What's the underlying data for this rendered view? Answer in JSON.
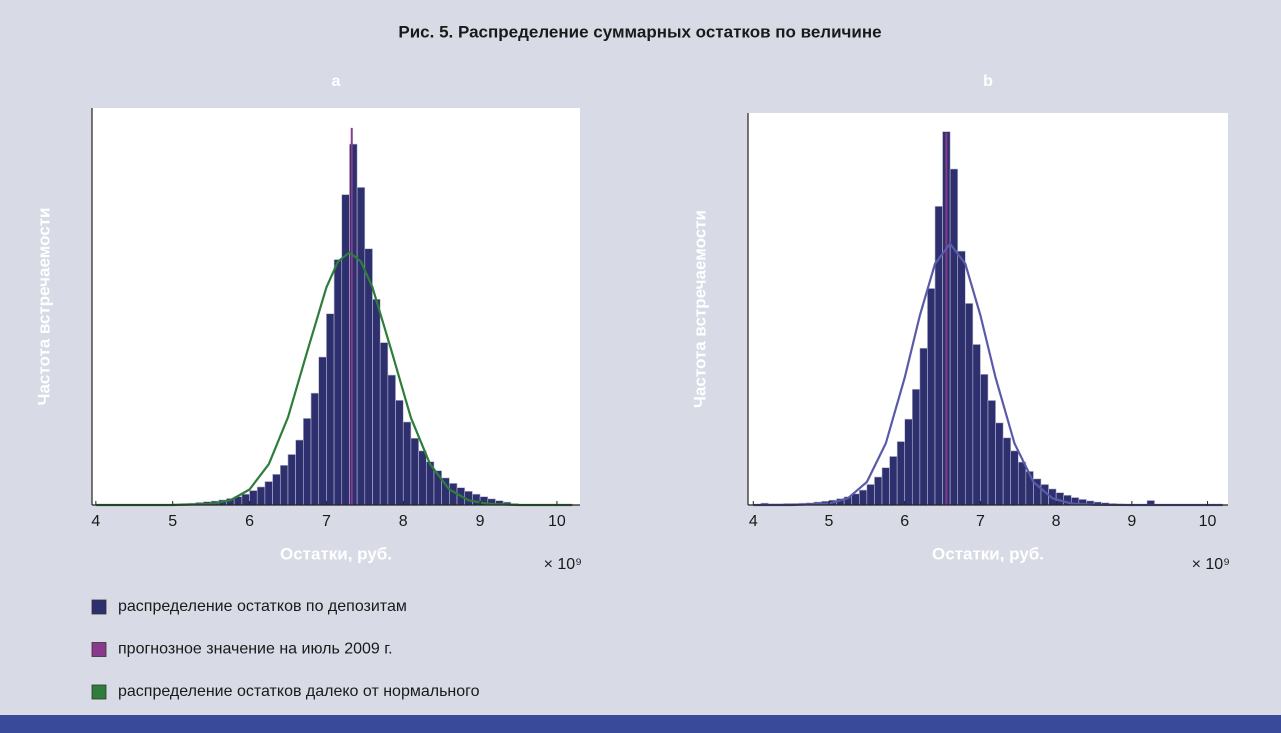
{
  "title": "Рис. 5. Распределение суммарных остатков по величине",
  "legend": [
    {
      "label": "распределение остатков по депозитам",
      "color": "#2e2f6e"
    },
    {
      "label": "прогнозное значение на июль 2009 г.",
      "color": "#8a3a8a"
    },
    {
      "label": "распределение остатков далеко от нормального",
      "color": "#2e7d3a"
    }
  ],
  "chart_data": [
    {
      "type": "histogram",
      "title": "a",
      "xlabel": "Остатки, руб.",
      "ylabel": "Частота встречаемости",
      "x_multiplier": "× 10⁹",
      "xlim": [
        3.95,
        10.3
      ],
      "xticks": [
        4,
        5,
        6,
        7,
        8,
        9,
        10
      ],
      "ylim": [
        0,
        110
      ],
      "bins": [
        5.0,
        5.1,
        5.2,
        5.3,
        5.4,
        5.5,
        5.6,
        5.7,
        5.8,
        5.9,
        6.0,
        6.1,
        6.2,
        6.3,
        6.4,
        6.5,
        6.6,
        6.7,
        6.8,
        6.9,
        7.0,
        7.1,
        7.2,
        7.3,
        7.4,
        7.5,
        7.6,
        7.7,
        7.8,
        7.9,
        8.0,
        8.1,
        8.2,
        8.3,
        8.4,
        8.5,
        8.6,
        8.7,
        8.8,
        8.9,
        9.0,
        9.1,
        9.2,
        9.3,
        9.4,
        9.5
      ],
      "counts": [
        0.3,
        0.4,
        0.5,
        0.7,
        0.9,
        1.1,
        1.4,
        1.8,
        2.3,
        3,
        4,
        5,
        6.5,
        8.5,
        11,
        14,
        18,
        24,
        31,
        41,
        53,
        68,
        86,
        100,
        88,
        71,
        57,
        45,
        36,
        29,
        23,
        18.5,
        15,
        12,
        9.5,
        7.5,
        6,
        4.8,
        3.8,
        3,
        2.3,
        1.7,
        1.2,
        0.8,
        0.4
      ],
      "color": "#2e2f6e",
      "forecast": 7.33,
      "forecast_color": "#8a3a8a",
      "curve": {
        "color": "#2e7d3a",
        "x": [
          4,
          4.5,
          5,
          5.5,
          5.75,
          6,
          6.25,
          6.5,
          6.75,
          7,
          7.15,
          7.3,
          7.45,
          7.6,
          7.85,
          8.1,
          8.35,
          8.6,
          8.85,
          9.1,
          9.5,
          10,
          10.2
        ],
        "values": [
          0,
          0,
          0.01,
          0.3,
          1.3,
          4.3,
          11.3,
          24.3,
          42.5,
          60.3,
          67.4,
          70,
          67.4,
          60.3,
          42.5,
          24.2,
          11.3,
          4.3,
          1.3,
          0.3,
          0,
          0,
          0
        ]
      }
    },
    {
      "type": "histogram",
      "title": "b",
      "xlabel": "Остатки, руб.",
      "ylabel": "Частота встречаемости",
      "x_multiplier": "× 10⁹",
      "xlim": [
        3.93,
        10.27
      ],
      "xticks": [
        4,
        5,
        6,
        7,
        8,
        9,
        10
      ],
      "ylim": [
        0,
        105
      ],
      "bins": [
        4.1,
        4.2,
        4.3,
        4.4,
        4.5,
        4.6,
        4.7,
        4.8,
        4.9,
        5.0,
        5.1,
        5.2,
        5.3,
        5.4,
        5.5,
        5.6,
        5.7,
        5.8,
        5.9,
        6.0,
        6.1,
        6.2,
        6.3,
        6.4,
        6.5,
        6.6,
        6.7,
        6.8,
        6.9,
        7.0,
        7.1,
        7.2,
        7.3,
        7.4,
        7.5,
        7.6,
        7.7,
        7.8,
        7.9,
        8.0,
        8.1,
        8.2,
        8.3,
        8.4,
        8.5,
        8.6,
        8.7,
        8.8,
        8.9,
        9.0,
        9.1,
        9.2,
        9.3
      ],
      "counts": [
        0.5,
        0.3,
        0.3,
        0.4,
        0.4,
        0.5,
        0.6,
        0.8,
        1,
        1.3,
        1.7,
        2.2,
        3,
        4,
        5.5,
        7.5,
        10,
        13,
        17,
        23,
        31,
        42,
        58,
        80,
        100,
        90,
        68,
        54,
        43,
        35,
        28,
        22,
        18,
        14.5,
        11.5,
        9,
        7,
        5.5,
        4.3,
        3.3,
        2.6,
        2,
        1.5,
        1.1,
        0.8,
        0.6,
        0.4,
        0.3,
        0.2,
        0.1,
        0.1,
        1.2
      ],
      "color": "#2e2f6e",
      "forecast": 6.55,
      "forecast_color": "#8a3a8a",
      "curve": {
        "color": "#5a5aaa",
        "x": [
          4,
          4.5,
          5,
          5.25,
          5.5,
          5.75,
          6,
          6.2,
          6.4,
          6.6,
          6.8,
          7,
          7.2,
          7.45,
          7.7,
          7.95,
          8.2,
          8.5,
          9,
          10.2
        ],
        "values": [
          0,
          0.01,
          0.4,
          1.8,
          6.2,
          16.5,
          34.1,
          50.8,
          64.6,
          70,
          64.6,
          50.8,
          34.1,
          16.5,
          6.2,
          1.8,
          0.4,
          0.05,
          0,
          0
        ]
      }
    }
  ]
}
